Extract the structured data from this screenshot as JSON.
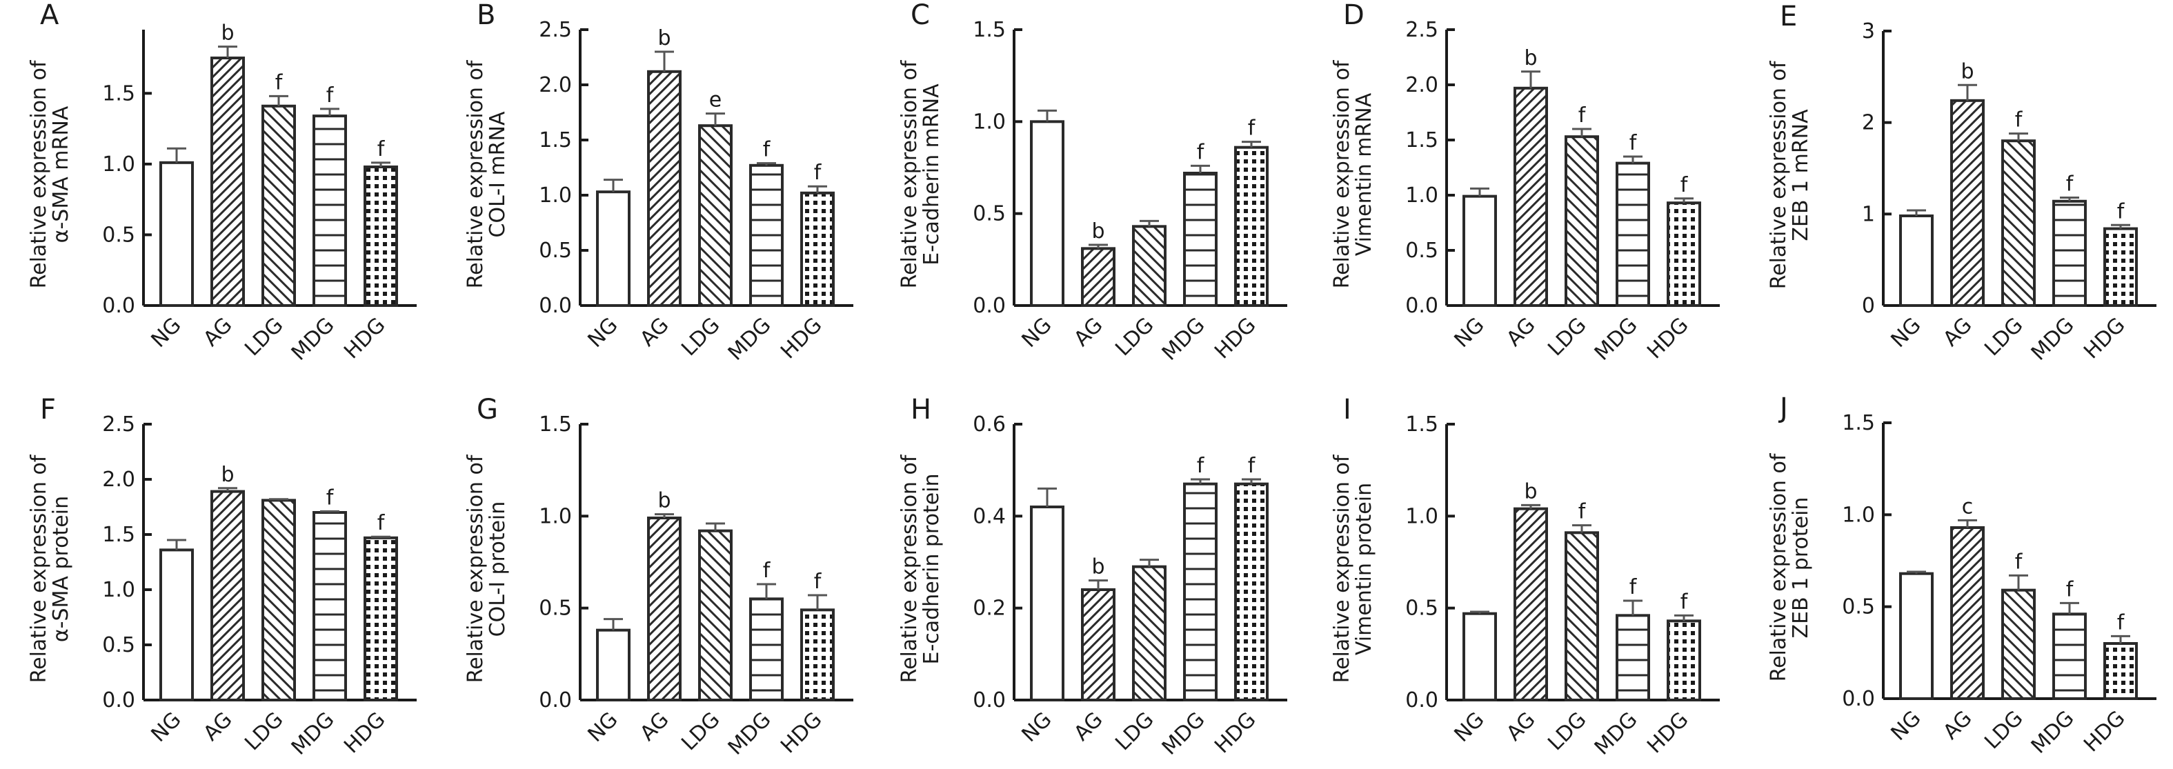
{
  "figure": {
    "description": "Ten bar-chart panels (A–J) comparing relative mRNA and protein expression across five groups"
  },
  "groups": [
    "NG",
    "AG",
    "LDG",
    "MDG",
    "HDG"
  ],
  "group_patterns": [
    "empty",
    "diag-up",
    "diag-down",
    "horizontal",
    "dots"
  ],
  "colors": {
    "ink": "#1a1a1a",
    "bar_edge": "#2a2a2a",
    "error_bar": "#555555",
    "background": "#ffffff"
  },
  "chart_data": [
    {
      "panel": "A",
      "type": "bar",
      "title": "",
      "ylabel_line1": "Relative expression of",
      "ylabel_line2": "α-SMA mRNA",
      "xlabel": "",
      "categories": [
        "NG",
        "AG",
        "LDG",
        "MDG",
        "HDG"
      ],
      "values": [
        1.01,
        1.75,
        1.41,
        1.34,
        0.98
      ],
      "errors": [
        0.1,
        0.08,
        0.07,
        0.05,
        0.03
      ],
      "significance": [
        "",
        "b",
        "f",
        "f",
        "f"
      ],
      "ylim": [
        0,
        1.95
      ],
      "yticks": [
        0.0,
        0.5,
        1.0,
        1.5
      ],
      "ytick_labels": [
        "0.0",
        "0.5",
        "1.0",
        "1.5"
      ],
      "grid": false,
      "legend": "none"
    },
    {
      "panel": "B",
      "type": "bar",
      "title": "",
      "ylabel_line1": "Relative expression of",
      "ylabel_line2": "COL-I mRNA",
      "xlabel": "",
      "categories": [
        "NG",
        "AG",
        "LDG",
        "MDG",
        "HDG"
      ],
      "values": [
        1.03,
        2.12,
        1.63,
        1.27,
        1.02
      ],
      "errors": [
        0.11,
        0.18,
        0.11,
        0.02,
        0.06
      ],
      "significance": [
        "",
        "b",
        "e",
        "f",
        "f"
      ],
      "ylim": [
        0,
        2.5
      ],
      "yticks": [
        0.0,
        0.5,
        1.0,
        1.5,
        2.0,
        2.5
      ],
      "ytick_labels": [
        "0.0",
        "0.5",
        "1.0",
        "1.5",
        "2.0",
        "2.5"
      ],
      "grid": false,
      "legend": "none"
    },
    {
      "panel": "C",
      "type": "bar",
      "title": "",
      "ylabel_line1": "Relative expression of",
      "ylabel_line2": "E-cadherin mRNA",
      "xlabel": "",
      "categories": [
        "NG",
        "AG",
        "LDG",
        "MDG",
        "HDG"
      ],
      "values": [
        1.0,
        0.31,
        0.43,
        0.72,
        0.86
      ],
      "errors": [
        0.06,
        0.02,
        0.03,
        0.04,
        0.03
      ],
      "significance": [
        "",
        "b",
        "",
        "f",
        "f"
      ],
      "ylim": [
        0,
        1.5
      ],
      "yticks": [
        0.0,
        0.5,
        1.0,
        1.5
      ],
      "ytick_labels": [
        "0.0",
        "0.5",
        "1.0",
        "1.5"
      ],
      "grid": false,
      "legend": "none"
    },
    {
      "panel": "D",
      "type": "bar",
      "title": "",
      "ylabel_line1": "Relative expression of",
      "ylabel_line2": "Vimentin mRNA",
      "xlabel": "",
      "categories": [
        "NG",
        "AG",
        "LDG",
        "MDG",
        "HDG"
      ],
      "values": [
        0.99,
        1.97,
        1.53,
        1.29,
        0.93
      ],
      "errors": [
        0.07,
        0.15,
        0.07,
        0.06,
        0.04
      ],
      "significance": [
        "",
        "b",
        "f",
        "f",
        "f"
      ],
      "ylim": [
        0,
        2.5
      ],
      "yticks": [
        0.0,
        0.5,
        1.0,
        1.5,
        2.0,
        2.5
      ],
      "ytick_labels": [
        "0.0",
        "0.5",
        "1.0",
        "1.5",
        "2.0",
        "2.5"
      ],
      "grid": false,
      "legend": "none"
    },
    {
      "panel": "E",
      "type": "bar",
      "title": "",
      "ylabel_line1": "Relative expression of",
      "ylabel_line2": "ZEB 1 mRNA",
      "xlabel": "",
      "categories": [
        "NG",
        "AG",
        "LDG",
        "MDG",
        "HDG"
      ],
      "values": [
        0.98,
        2.24,
        1.8,
        1.14,
        0.84
      ],
      "errors": [
        0.06,
        0.17,
        0.08,
        0.04,
        0.04
      ],
      "significance": [
        "",
        "b",
        "f",
        "f",
        "f"
      ],
      "ylim": [
        0,
        3
      ],
      "yticks": [
        0,
        1,
        2,
        3
      ],
      "ytick_labels": [
        "0",
        "1",
        "2",
        "3"
      ],
      "grid": false,
      "legend": "none"
    },
    {
      "panel": "F",
      "type": "bar",
      "title": "",
      "ylabel_line1": "Relative expression of",
      "ylabel_line2": "α-SMA protein",
      "xlabel": "",
      "categories": [
        "NG",
        "AG",
        "LDG",
        "MDG",
        "HDG"
      ],
      "values": [
        1.36,
        1.89,
        1.81,
        1.7,
        1.47
      ],
      "errors": [
        0.09,
        0.03,
        0.01,
        0.01,
        0.01
      ],
      "significance": [
        "",
        "b",
        "",
        "f",
        "f"
      ],
      "ylim": [
        0,
        2.5
      ],
      "yticks": [
        0.0,
        0.5,
        1.0,
        1.5,
        2.0,
        2.5
      ],
      "ytick_labels": [
        "0.0",
        "0.5",
        "1.0",
        "1.5",
        "2.0",
        "2.5"
      ],
      "grid": false,
      "legend": "none"
    },
    {
      "panel": "G",
      "type": "bar",
      "title": "",
      "ylabel_line1": "Relative expression of",
      "ylabel_line2": "COL-I protein",
      "xlabel": "",
      "categories": [
        "NG",
        "AG",
        "LDG",
        "MDG",
        "HDG"
      ],
      "values": [
        0.38,
        0.99,
        0.92,
        0.55,
        0.49
      ],
      "errors": [
        0.06,
        0.02,
        0.04,
        0.08,
        0.08
      ],
      "significance": [
        "",
        "b",
        "",
        "f",
        "f"
      ],
      "ylim": [
        0,
        1.5
      ],
      "yticks": [
        0.0,
        0.5,
        1.0,
        1.5
      ],
      "ytick_labels": [
        "0.0",
        "0.5",
        "1.0",
        "1.5"
      ],
      "grid": false,
      "legend": "none"
    },
    {
      "panel": "H",
      "type": "bar",
      "title": "",
      "ylabel_line1": "Relative expression of",
      "ylabel_line2": "E-cadherin protein",
      "xlabel": "",
      "categories": [
        "NG",
        "AG",
        "LDG",
        "MDG",
        "HDG"
      ],
      "values": [
        0.42,
        0.24,
        0.29,
        0.47,
        0.47
      ],
      "errors": [
        0.04,
        0.02,
        0.015,
        0.01,
        0.01
      ],
      "significance": [
        "",
        "b",
        "",
        "f",
        "f"
      ],
      "ylim": [
        0,
        0.6
      ],
      "yticks": [
        0.0,
        0.2,
        0.4,
        0.6
      ],
      "ytick_labels": [
        "0.0",
        "0.2",
        "0.4",
        "0.6"
      ],
      "grid": false,
      "legend": "none"
    },
    {
      "panel": "I",
      "type": "bar",
      "title": "",
      "ylabel_line1": "Relative expression of",
      "ylabel_line2": "Vimentin protein",
      "xlabel": "",
      "categories": [
        "NG",
        "AG",
        "LDG",
        "MDG",
        "HDG"
      ],
      "values": [
        0.47,
        1.04,
        0.91,
        0.46,
        0.43
      ],
      "errors": [
        0.01,
        0.02,
        0.04,
        0.08,
        0.03
      ],
      "significance": [
        "",
        "b",
        "f",
        "f",
        "f"
      ],
      "ylim": [
        0,
        1.5
      ],
      "yticks": [
        0.0,
        0.5,
        1.0,
        1.5
      ],
      "ytick_labels": [
        "0.0",
        "0.5",
        "1.0",
        "1.5"
      ],
      "grid": false,
      "legend": "none"
    },
    {
      "panel": "J",
      "type": "bar",
      "title": "",
      "ylabel_line1": "Relative expression of",
      "ylabel_line2": "ZEB 1 protein",
      "xlabel": "",
      "categories": [
        "NG",
        "AG",
        "LDG",
        "MDG",
        "HDG"
      ],
      "values": [
        0.68,
        0.93,
        0.59,
        0.46,
        0.3
      ],
      "errors": [
        0.01,
        0.04,
        0.08,
        0.06,
        0.04
      ],
      "significance": [
        "",
        "c",
        "f",
        "f",
        "f"
      ],
      "ylim": [
        0,
        1.5
      ],
      "yticks": [
        0.0,
        0.5,
        1.0,
        1.5
      ],
      "ytick_labels": [
        "0.0",
        "0.5",
        "1.0",
        "1.5"
      ],
      "grid": false,
      "legend": "none"
    }
  ]
}
